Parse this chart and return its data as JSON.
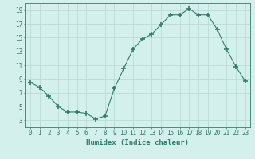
{
  "x": [
    0,
    1,
    2,
    3,
    4,
    5,
    6,
    7,
    8,
    9,
    10,
    11,
    12,
    13,
    14,
    15,
    16,
    17,
    18,
    19,
    20,
    21,
    22,
    23
  ],
  "y": [
    8.5,
    7.8,
    6.5,
    5.0,
    4.2,
    4.2,
    4.0,
    3.2,
    3.6,
    7.6,
    10.5,
    13.3,
    14.8,
    15.5,
    16.9,
    18.3,
    18.3,
    19.2,
    18.3,
    18.3,
    16.2,
    13.3,
    10.8,
    8.7
  ],
  "line_color": "#2e7d6e",
  "marker": "+",
  "marker_size": 4,
  "marker_lw": 1.2,
  "bg_color": "#d4f0ec",
  "grid_color": "#b5d8d2",
  "xlabel": "Humidex (Indice chaleur)",
  "xlim": [
    -0.5,
    23.5
  ],
  "ylim": [
    2,
    20
  ],
  "yticks": [
    3,
    5,
    7,
    9,
    11,
    13,
    15,
    17,
    19
  ],
  "xticks": [
    0,
    1,
    2,
    3,
    4,
    5,
    6,
    7,
    8,
    9,
    10,
    11,
    12,
    13,
    14,
    15,
    16,
    17,
    18,
    19,
    20,
    21,
    22,
    23
  ],
  "xtick_labels": [
    "0",
    "1",
    "2",
    "3",
    "4",
    "5",
    "6",
    "7",
    "8",
    "9",
    "10",
    "11",
    "12",
    "13",
    "14",
    "15",
    "16",
    "17",
    "18",
    "19",
    "20",
    "21",
    "22",
    "23"
  ],
  "label_fontsize": 6.5,
  "tick_fontsize": 5.5
}
